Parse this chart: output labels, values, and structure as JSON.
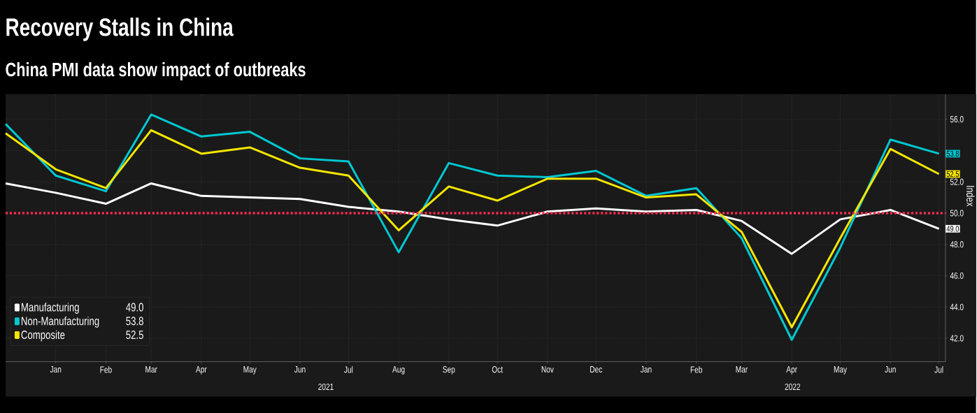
{
  "chart_data": {
    "type": "line",
    "title": "Recovery Stalls in China",
    "subtitle": "China PMI data show impact of outbreaks",
    "ylabel": "Index",
    "x": [
      "2020-12",
      "2021-01",
      "2021-02",
      "2021-03",
      "2021-04",
      "2021-05",
      "2021-06",
      "2021-07",
      "2021-08",
      "2021-09",
      "2021-10",
      "2021-11",
      "2021-12",
      "2022-01",
      "2022-02",
      "2022-03",
      "2022-04",
      "2022-05",
      "2022-06",
      "2022-07"
    ],
    "series": [
      {
        "name": "Manufacturing",
        "color": "#ffffff",
        "values": [
          51.9,
          51.3,
          50.6,
          51.9,
          51.1,
          51.0,
          50.9,
          50.4,
          50.1,
          49.6,
          49.2,
          50.1,
          50.3,
          50.1,
          50.2,
          49.5,
          47.4,
          49.6,
          50.2,
          49.0
        ],
        "value_labels": [
          null,
          null,
          null,
          null,
          null,
          null,
          null,
          null,
          null,
          null,
          null,
          null,
          null,
          null,
          null,
          null,
          null,
          null,
          null,
          "49.0"
        ]
      },
      {
        "name": "Non-Manufacturing",
        "color": "#00c8d2",
        "values": [
          55.7,
          52.4,
          51.4,
          56.3,
          54.9,
          55.2,
          53.5,
          53.3,
          47.5,
          53.2,
          52.4,
          52.3,
          52.7,
          51.1,
          51.6,
          48.4,
          41.9,
          47.8,
          54.7,
          53.8
        ],
        "value_labels": [
          null,
          null,
          null,
          null,
          null,
          null,
          null,
          null,
          null,
          null,
          null,
          null,
          null,
          null,
          null,
          null,
          null,
          null,
          null,
          "53.8"
        ]
      },
      {
        "name": "Composite",
        "color": "#f5e600",
        "values": [
          55.1,
          52.8,
          51.6,
          55.3,
          53.8,
          54.2,
          52.9,
          52.4,
          48.9,
          51.7,
          50.8,
          52.2,
          52.2,
          51.0,
          51.2,
          48.8,
          42.7,
          48.4,
          54.1,
          52.5
        ],
        "value_labels": [
          null,
          null,
          null,
          null,
          null,
          null,
          null,
          null,
          null,
          null,
          null,
          null,
          null,
          null,
          null,
          null,
          null,
          null,
          null,
          "52.5"
        ]
      }
    ],
    "xlim": [
      "2020-12-01",
      "2022-07-05"
    ],
    "xticks": [
      {
        "value": "2021-01",
        "label": "Jan"
      },
      {
        "value": "2021-02",
        "label": "Feb"
      },
      {
        "value": "2021-03",
        "label": "Mar"
      },
      {
        "value": "2021-04",
        "label": "Apr"
      },
      {
        "value": "2021-05",
        "label": "May"
      },
      {
        "value": "2021-06",
        "label": "Jun"
      },
      {
        "value": "2021-07",
        "label": "Jul"
      },
      {
        "value": "2021-08",
        "label": "Aug"
      },
      {
        "value": "2021-09",
        "label": "Sep"
      },
      {
        "value": "2021-10",
        "label": "Oct"
      },
      {
        "value": "2021-11",
        "label": "Nov"
      },
      {
        "value": "2021-12",
        "label": "Dec"
      },
      {
        "value": "2022-01",
        "label": "Jan"
      },
      {
        "value": "2022-02",
        "label": "Feb"
      },
      {
        "value": "2022-03",
        "label": "Mar"
      },
      {
        "value": "2022-04",
        "label": "Apr"
      },
      {
        "value": "2022-05",
        "label": "May"
      },
      {
        "value": "2022-06",
        "label": "Jun"
      },
      {
        "value": "2022-07",
        "label": "Jul"
      }
    ],
    "ylim": [
      40.5,
      57.6
    ],
    "yticks": [
      {
        "value": 42,
        "label": "42.0"
      },
      {
        "value": 44,
        "label": "44.0"
      },
      {
        "value": 46,
        "label": "46.0"
      },
      {
        "value": 48,
        "label": "48.0"
      },
      {
        "value": 50,
        "label": "50.0"
      },
      {
        "value": 52,
        "label": "52.0"
      },
      {
        "value": 54,
        "label": null
      },
      {
        "value": 56,
        "label": "56.0"
      }
    ],
    "annotations": [
      "2021",
      "2022"
    ],
    "ref_lines": [
      {
        "axis": "y",
        "value": 50,
        "color": "#ff2a4f",
        "line_style": "dotted"
      }
    ],
    "grid": true,
    "legend": "bottom left",
    "line_style": "solid"
  }
}
